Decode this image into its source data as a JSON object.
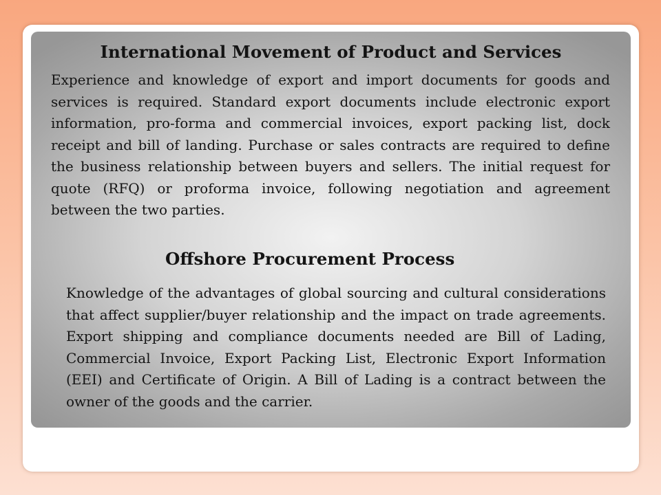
{
  "slide": {
    "section1": {
      "heading": "International Movement of Product and Services",
      "body": "Experience and knowledge of export and import documents for goods and services is required.  Standard export documents include electronic export information, pro-forma and commercial invoices, export packing list, dock receipt and bill of landing.     Purchase or sales contracts are required to define the business relationship between buyers and sellers.   The initial request for quote (RFQ) or proforma invoice, following negotiation and agreement between the two parties."
    },
    "section2": {
      "heading": "Offshore Procurement Process",
      "body": "Knowledge of the advantages of global sourcing and cultural considerations that affect supplier/buyer relationship and the impact on trade agreements.     Export shipping and compliance documents needed are Bill of Lading, Commercial Invoice, Export Packing List, Electronic Export Information (EEI) and Certificate of Origin.  A Bill of Lading is a contract between the owner of the goods and the carrier."
    }
  },
  "colors": {
    "background_top": "#f9a77f",
    "background_bottom": "#fde0d2",
    "text": "#141414"
  }
}
